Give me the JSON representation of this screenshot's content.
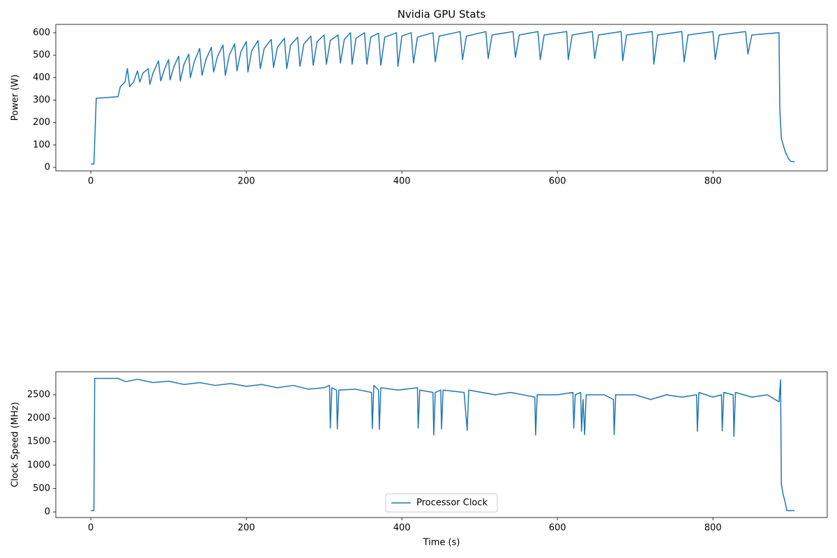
{
  "chart_data": [
    {
      "type": "line",
      "title": "Nvidia GPU Stats",
      "ylabel": "Power (W)",
      "x": [
        0,
        4,
        7,
        35,
        38,
        44,
        47,
        50,
        55,
        60,
        63,
        67,
        74,
        76,
        80,
        87,
        90,
        95,
        100,
        102,
        107,
        113,
        115,
        120,
        126,
        128,
        133,
        140,
        143,
        148,
        155,
        158,
        163,
        170,
        173,
        178,
        185,
        188,
        193,
        200,
        202,
        207,
        215,
        218,
        223,
        232,
        235,
        240,
        249,
        252,
        257,
        266,
        269,
        274,
        283,
        286,
        291,
        300,
        303,
        308,
        318,
        321,
        326,
        334,
        336,
        341,
        352,
        355,
        360,
        370,
        373,
        378,
        393,
        395,
        400,
        412,
        415,
        420,
        440,
        443,
        448,
        475,
        478,
        483,
        508,
        511,
        516,
        543,
        546,
        551,
        575,
        578,
        583,
        612,
        614,
        619,
        645,
        648,
        653,
        682,
        684,
        689,
        722,
        724,
        729,
        760,
        763,
        768,
        800,
        803,
        808,
        842,
        845,
        850,
        885,
        886,
        888,
        893,
        897,
        900,
        905
      ],
      "series": [
        {
          "color": "#1f77b4",
          "values": [
            15,
            15,
            308,
            315,
            360,
            380,
            440,
            360,
            380,
            430,
            380,
            420,
            440,
            370,
            420,
            475,
            385,
            440,
            480,
            390,
            450,
            495,
            385,
            460,
            505,
            400,
            470,
            530,
            410,
            480,
            535,
            425,
            495,
            545,
            410,
            500,
            550,
            430,
            515,
            560,
            425,
            520,
            565,
            440,
            530,
            570,
            445,
            535,
            575,
            440,
            545,
            580,
            450,
            550,
            585,
            455,
            560,
            590,
            460,
            565,
            590,
            465,
            570,
            600,
            460,
            575,
            600,
            460,
            580,
            598,
            455,
            580,
            600,
            450,
            585,
            600,
            465,
            580,
            600,
            470,
            585,
            605,
            480,
            585,
            605,
            485,
            590,
            605,
            490,
            590,
            605,
            480,
            590,
            605,
            480,
            590,
            605,
            485,
            590,
            605,
            475,
            590,
            605,
            460,
            590,
            605,
            470,
            590,
            605,
            480,
            590,
            605,
            505,
            590,
            600,
            260,
            130,
            70,
            40,
            27,
            25
          ]
        }
      ],
      "xlim": [
        -45,
        947
      ],
      "ylim": [
        -15.5,
        637
      ],
      "xticks": [
        0,
        200,
        400,
        600,
        800
      ],
      "yticks": [
        0,
        100,
        200,
        300,
        400,
        500,
        600
      ]
    },
    {
      "type": "line",
      "xlabel": "Time (s)",
      "ylabel": "Clock Speed (MHz)",
      "x": [
        0,
        4,
        5,
        35,
        45,
        60,
        80,
        100,
        120,
        140,
        160,
        180,
        200,
        220,
        240,
        260,
        280,
        300,
        307,
        308,
        310,
        316,
        317,
        319,
        340,
        361,
        362,
        364,
        370,
        371,
        373,
        395,
        420,
        421,
        423,
        440,
        441,
        443,
        450,
        451,
        453,
        480,
        484,
        486,
        520,
        540,
        571,
        572,
        574,
        600,
        620,
        621,
        623,
        630,
        631,
        633,
        635,
        637,
        660,
        672,
        673,
        675,
        700,
        720,
        740,
        760,
        779,
        780,
        782,
        800,
        811,
        812,
        814,
        826,
        827,
        829,
        850,
        870,
        885,
        887,
        888,
        890,
        893,
        895,
        905
      ],
      "series": [
        {
          "name": "Processor Clock",
          "color": "#1f77b4",
          "values": [
            30,
            30,
            2850,
            2850,
            2780,
            2830,
            2760,
            2790,
            2720,
            2760,
            2700,
            2740,
            2680,
            2720,
            2650,
            2700,
            2620,
            2650,
            2700,
            1790,
            2650,
            2600,
            1770,
            2600,
            2620,
            2550,
            1780,
            2700,
            2600,
            1760,
            2650,
            2600,
            2650,
            1790,
            2600,
            2550,
            1640,
            2550,
            2600,
            1770,
            2600,
            2550,
            1740,
            2600,
            2500,
            2550,
            2450,
            1640,
            2500,
            2500,
            2550,
            1790,
            2500,
            2550,
            1720,
            2400,
            1650,
            2500,
            2500,
            2400,
            1650,
            2500,
            2500,
            2400,
            2500,
            2450,
            2500,
            1720,
            2550,
            2450,
            2500,
            1730,
            2550,
            2500,
            1610,
            2550,
            2450,
            2500,
            2350,
            2820,
            600,
            400,
            200,
            30,
            30
          ]
        }
      ],
      "xlim": [
        -45,
        947
      ],
      "ylim": [
        -119,
        2991
      ],
      "xticks": [
        0,
        200,
        400,
        600,
        800
      ],
      "yticks": [
        0,
        500,
        1000,
        1500,
        2000,
        2500
      ],
      "legend": "lower center"
    }
  ]
}
